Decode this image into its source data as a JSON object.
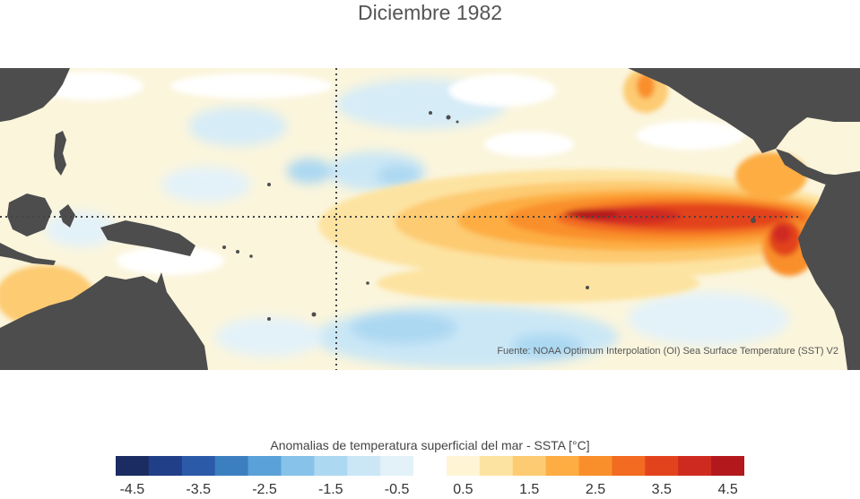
{
  "title": "Diciembre 1982",
  "source_note": "Fuente: NOAA Optimum Interpolation (OI) Sea Surface Temperature (SST) V2",
  "colorbar": {
    "label": "Anomalias de temperatura superficial del mar - SSTA  [°C]",
    "colors": [
      "#1b2c62",
      "#203f88",
      "#2a5aa8",
      "#3c7fc0",
      "#5aa1d9",
      "#86c2ea",
      "#acd8f2",
      "#cbe7f6",
      "#e3f2f9",
      "#ffffff",
      "#fff4d4",
      "#fde3a1",
      "#fdcb72",
      "#fdad42",
      "#f98f2a",
      "#f26b21",
      "#e2431c",
      "#cf2a20",
      "#b2181c"
    ],
    "tick_labels": [
      "-4.5",
      "-3.5",
      "-2.5",
      "-1.5",
      "-0.5",
      "0.5",
      "1.5",
      "2.5",
      "3.5",
      "4.5"
    ],
    "tick_values": [
      -4.5,
      -3.5,
      -2.5,
      -1.5,
      -0.5,
      0.5,
      1.5,
      2.5,
      3.5,
      4.5
    ]
  },
  "map": {
    "land_color": "#4d4d4d",
    "reference_line_style": "dotted",
    "reference_lines": [
      "equator",
      "date line"
    ]
  }
}
